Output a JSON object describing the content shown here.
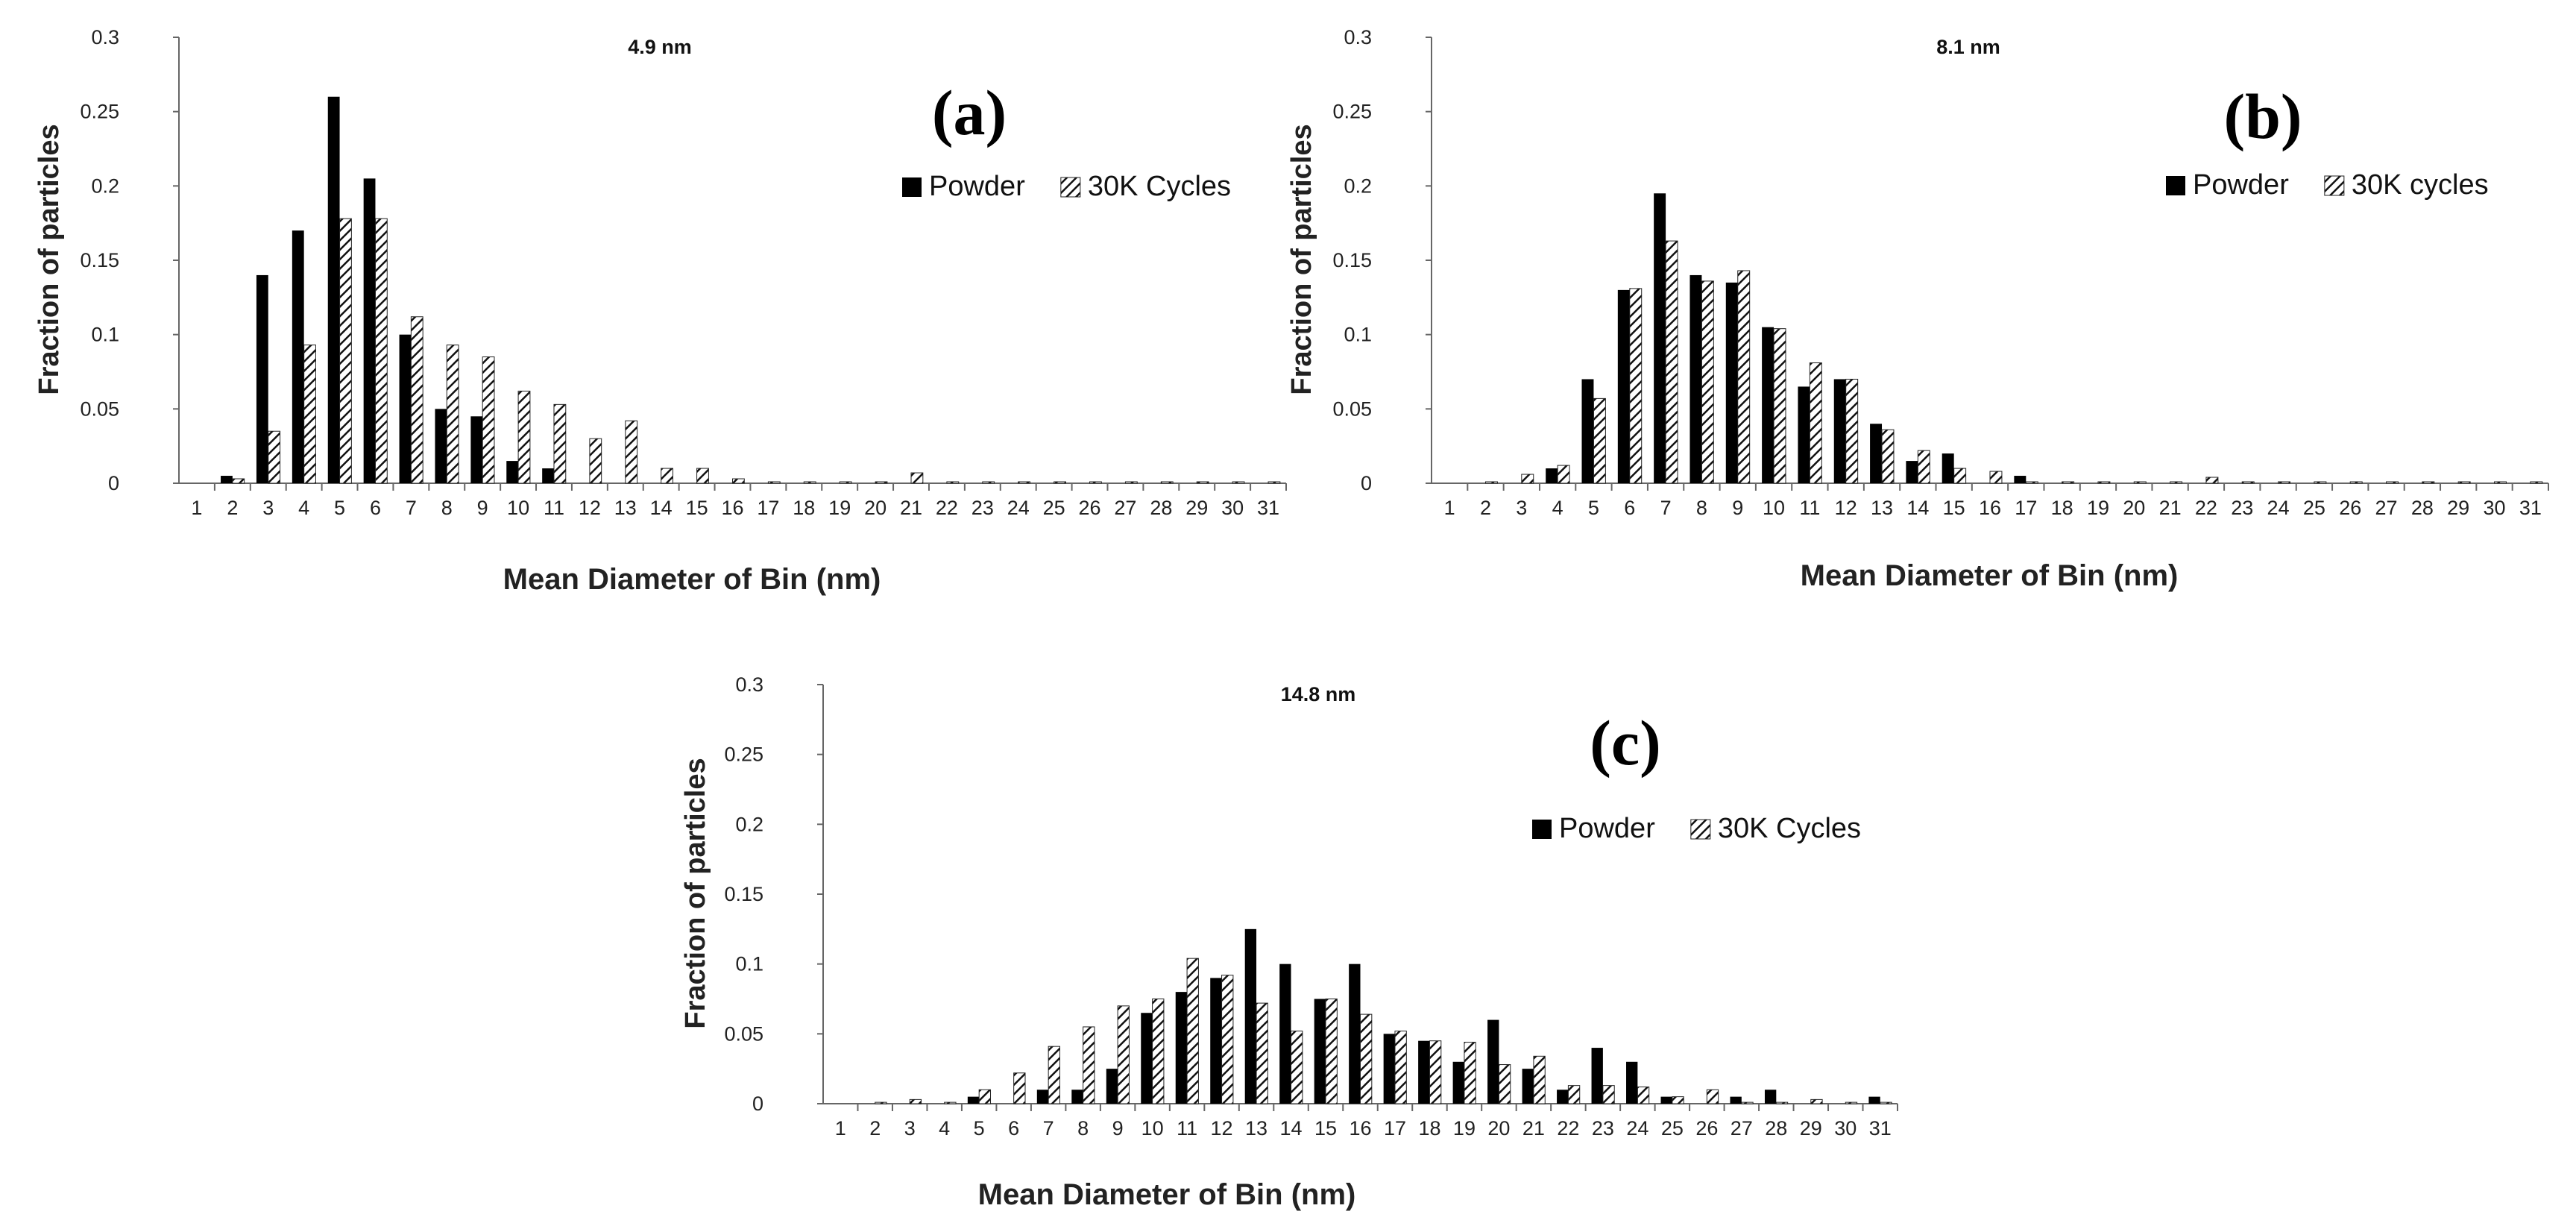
{
  "figure": {
    "xlabel": "Mean Diameter of Bin (nm)",
    "ylabel": "Fraction of particles"
  },
  "chart_data": [
    {
      "type": "bar",
      "panel_label": "(a)",
      "title": "4.9 nm",
      "xlabel": "Mean Diameter of Bin (nm)",
      "ylabel": "Fraction of particles",
      "ylim": [
        0,
        0.3
      ],
      "yticks": [
        "0",
        "0.05",
        "0.1",
        "0.15",
        "0.2",
        "0.25",
        "0.3"
      ],
      "legend_position": "top-right",
      "categories": [
        "1",
        "2",
        "3",
        "4",
        "5",
        "6",
        "7",
        "8",
        "9",
        "10",
        "11",
        "12",
        "13",
        "14",
        "15",
        "16",
        "17",
        "18",
        "19",
        "20",
        "21",
        "22",
        "23",
        "24",
        "25",
        "26",
        "27",
        "28",
        "29",
        "30",
        "31"
      ],
      "series": [
        {
          "name": "Powder",
          "pattern": "solid",
          "values": [
            0,
            0.005,
            0.14,
            0.17,
            0.26,
            0.205,
            0.1,
            0.05,
            0.045,
            0.015,
            0.01,
            0,
            0,
            0,
            0,
            0,
            0,
            0,
            0,
            0,
            0,
            0,
            0,
            0,
            0,
            0,
            0,
            0,
            0,
            0,
            0
          ]
        },
        {
          "name": "30K Cycles",
          "pattern": "hatched",
          "values": [
            0,
            0.003,
            0.035,
            0.093,
            0.178,
            0.178,
            0.112,
            0.093,
            0.085,
            0.062,
            0.053,
            0.03,
            0.042,
            0.01,
            0.01,
            0.003,
            0.001,
            0.001,
            0.001,
            0.001,
            0.007,
            0.001,
            0.001,
            0.001,
            0.001,
            0.001,
            0.001,
            0.001,
            0.001,
            0.001,
            0.001
          ]
        }
      ]
    },
    {
      "type": "bar",
      "panel_label": "(b)",
      "title": "8.1 nm",
      "xlabel": "Mean Diameter of Bin (nm)",
      "ylabel": "Fraction of particles",
      "ylim": [
        0,
        0.3
      ],
      "yticks": [
        "0",
        "0.05",
        "0.1",
        "0.15",
        "0.2",
        "0.25",
        "0.3"
      ],
      "legend_position": "top-right",
      "categories": [
        "1",
        "2",
        "3",
        "4",
        "5",
        "6",
        "7",
        "8",
        "9",
        "10",
        "11",
        "12",
        "13",
        "14",
        "15",
        "16",
        "17",
        "18",
        "19",
        "20",
        "21",
        "22",
        "23",
        "24",
        "25",
        "26",
        "27",
        "28",
        "29",
        "30",
        "31"
      ],
      "series": [
        {
          "name": "Powder",
          "pattern": "solid",
          "values": [
            0,
            0,
            0,
            0.01,
            0.07,
            0.13,
            0.195,
            0.14,
            0.135,
            0.105,
            0.065,
            0.07,
            0.04,
            0.015,
            0.02,
            0,
            0.005,
            0,
            0,
            0,
            0,
            0,
            0,
            0,
            0,
            0,
            0,
            0,
            0,
            0,
            0
          ]
        },
        {
          "name": "30K cycles",
          "pattern": "hatched",
          "values": [
            0,
            0.001,
            0.006,
            0.012,
            0.057,
            0.131,
            0.163,
            0.136,
            0.143,
            0.104,
            0.081,
            0.07,
            0.036,
            0.022,
            0.01,
            0.008,
            0.001,
            0.001,
            0.001,
            0.001,
            0.001,
            0.004,
            0.001,
            0.001,
            0.001,
            0.001,
            0.001,
            0.001,
            0.001,
            0.001,
            0.001
          ]
        }
      ]
    },
    {
      "type": "bar",
      "panel_label": "(c)",
      "title": "14.8 nm",
      "xlabel": "Mean Diameter of Bin (nm)",
      "ylabel": "Fraction of particles",
      "ylim": [
        0,
        0.3
      ],
      "yticks": [
        "0",
        "0.05",
        "0.1",
        "0.15",
        "0.2",
        "0.25",
        "0.3"
      ],
      "legend_position": "center-right",
      "categories": [
        "1",
        "2",
        "3",
        "4",
        "5",
        "6",
        "7",
        "8",
        "9",
        "10",
        "11",
        "12",
        "13",
        "14",
        "15",
        "16",
        "17",
        "18",
        "19",
        "20",
        "21",
        "22",
        "23",
        "24",
        "25",
        "26",
        "27",
        "28",
        "29",
        "30",
        "31"
      ],
      "series": [
        {
          "name": "Powder",
          "pattern": "solid",
          "values": [
            0,
            0,
            0,
            0,
            0.005,
            0,
            0.01,
            0.01,
            0.025,
            0.065,
            0.08,
            0.09,
            0.125,
            0.1,
            0.075,
            0.1,
            0.05,
            0.045,
            0.03,
            0.06,
            0.025,
            0.01,
            0.04,
            0.03,
            0.005,
            0,
            0.005,
            0.01,
            0,
            0,
            0.005
          ]
        },
        {
          "name": "30K Cycles",
          "pattern": "hatched",
          "values": [
            0,
            0.001,
            0.003,
            0.001,
            0.01,
            0.022,
            0.041,
            0.055,
            0.07,
            0.075,
            0.104,
            0.092,
            0.072,
            0.052,
            0.075,
            0.064,
            0.052,
            0.045,
            0.044,
            0.028,
            0.034,
            0.013,
            0.013,
            0.012,
            0.005,
            0.01,
            0.001,
            0.001,
            0.003,
            0.001,
            0.001
          ]
        }
      ]
    }
  ]
}
